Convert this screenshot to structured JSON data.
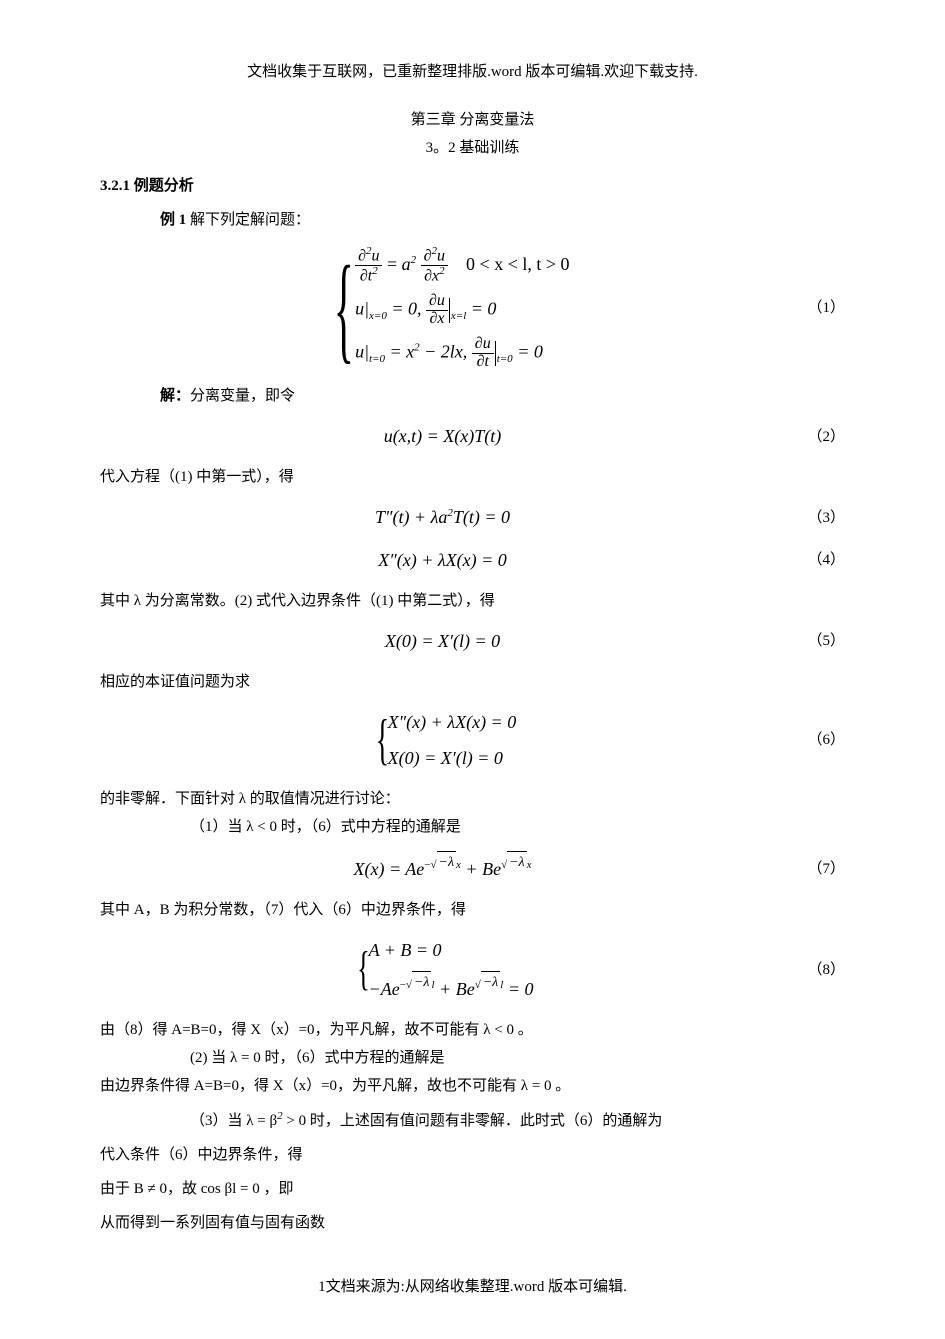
{
  "header_note": "文档收集于互联网，已重新整理排版.word 版本可编辑.欢迎下载支持.",
  "chapter_title": "第三章  分离变量法",
  "section_title": "3。2 基础训练",
  "subsection_label": "3.2.1   例题分析",
  "example1_label": "例 1",
  "example1_text": " 解下列定解问题：",
  "system1": {
    "line1_pre": "",
    "line1_condition": "0 < x < l, t > 0",
    "line2": "u|",
    "line2_sub": "x=0",
    "line2_mid": " = 0,   ",
    "line2_sub2": "x=l",
    "line2_end": " = 0",
    "line3": "u|",
    "line3_sub": "t=0",
    "line3_mid": " = x",
    "line3_sup": "2",
    "line3_mid2": " − 2lx,   ",
    "line3_sub2": "t=0",
    "line3_end": " = 0"
  },
  "eq_nums": {
    "n1": "（1）",
    "n2": "（2）",
    "n3": "（3）",
    "n4": "（4）",
    "n5": "（5）",
    "n6": "（6）",
    "n7": "（7）",
    "n8": "（8）"
  },
  "solve_label": "解：",
  "solve_text": "分离变量，即令",
  "eq2": "u(x,t) = X(x)T(t)",
  "para_sub1": "代入方程（(1) 中第一式），得",
  "eq3": "T″(t) + λa",
  "eq3_sup": "2",
  "eq3_tail": "T(t) = 0",
  "eq4": "X″(x) + λX(x) = 0",
  "para_lambda": "其中 λ 为分离常数。(2) 式代入边界条件（(1) 中第二式），得",
  "eq5": "X(0) = X′(l) = 0",
  "para_eigen": "相应的本证值问题为求",
  "system6": {
    "line1": "X″(x) + λX(x) = 0",
    "line2": "X(0) = X′(l) = 0"
  },
  "para_nontrivial": "的非零解．下面针对 λ 的取值情况进行讨论：",
  "case1_line": "（1）当 λ < 0 时，（6）式中方程的通解是",
  "eq7_pre": "X(x) = Ae",
  "eq7_exp1": "−√−λ x",
  "eq7_mid": " + Be",
  "eq7_exp2": "√−λ x",
  "para_AB": "其中 A，B 为积分常数，（7）代入（6）中边界条件，得",
  "system8": {
    "line1": "A + B = 0",
    "line2_pre": "−Ae",
    "line2_exp1": "−√−λ l",
    "line2_mid": " + Be",
    "line2_exp2": "√−λ l",
    "line2_end": " = 0"
  },
  "para_case1_conclusion": "由（8）得 A=B=0，得 X（x）=0，为平凡解，故不可能有 λ < 0 。",
  "case2_line": "(2) 当 λ = 0 时，（6）式中方程的通解是",
  "para_case2_conclusion": "由边界条件得 A=B=0，得 X（x）=0，为平凡解，故也不可能有 λ = 0 。",
  "case3_line": "（3）当  λ = β",
  "case3_sup": "2",
  "case3_tail": " > 0 时，上述固有值问题有非零解．此时式（6）的通解为",
  "para_substitute": "代入条件（6）中边界条件，得",
  "para_B_nonzero": "由于  B ≠ 0，故  cos βl = 0 ，即",
  "para_eigenvalues": "从而得到一系列固有值与固有函数",
  "footer": "1文档来源为:从网络收集整理.word 版本可编辑."
}
